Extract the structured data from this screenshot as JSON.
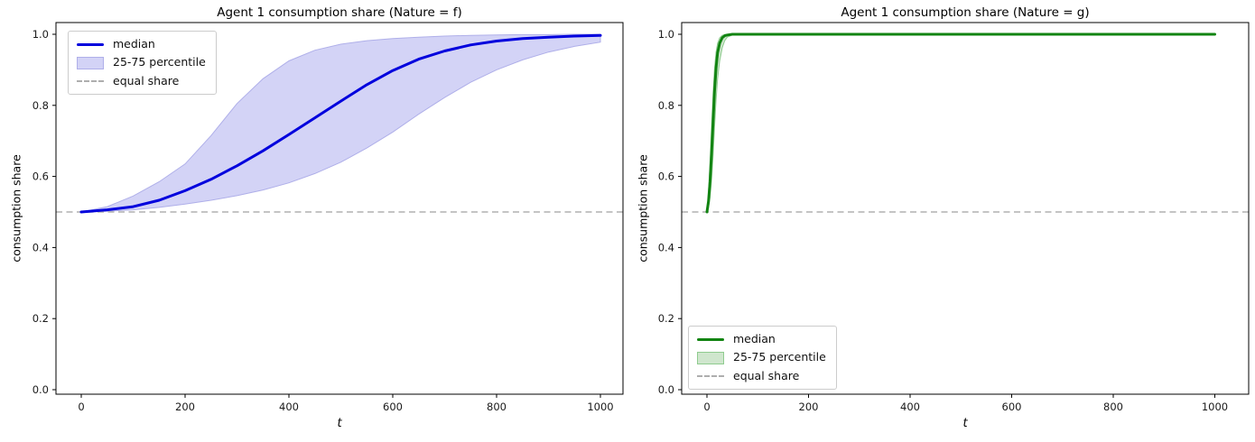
{
  "figure_background": "#ffffff",
  "chart_data": [
    {
      "type": "line",
      "title": "Agent 1 consumption share (Nature = f)",
      "xlabel": "t",
      "ylabel": "consumption share",
      "xlim": [
        -50,
        1050
      ],
      "ylim": [
        -0.03,
        1.04
      ],
      "grid": false,
      "xticks": [
        0,
        200,
        400,
        600,
        800,
        1000
      ],
      "xtick_labels": [
        "0",
        "200",
        "400",
        "600",
        "800",
        "1000"
      ],
      "yticks": [
        0.0,
        0.2,
        0.4,
        0.6,
        0.8,
        1.0
      ],
      "ytick_labels": [
        "0.0",
        "0.2",
        "0.4",
        "0.6",
        "0.8",
        "1.0"
      ],
      "legend": {
        "position": "upper left",
        "items": [
          "median",
          "25-75 percentile",
          "equal share"
        ]
      },
      "equal_share": 0.5,
      "colors": {
        "median": "#0000dd",
        "band_fill": "#d3d3f6",
        "band_edge": "#afafe9",
        "equal_share": "#b0b0b0"
      },
      "x": [
        0,
        50,
        100,
        150,
        200,
        250,
        300,
        350,
        400,
        450,
        500,
        550,
        600,
        650,
        700,
        750,
        800,
        850,
        900,
        950,
        1000
      ],
      "series": [
        {
          "name": "median",
          "values": [
            0.5,
            0.506,
            0.515,
            0.533,
            0.56,
            0.592,
            0.63,
            0.672,
            0.718,
            0.765,
            0.812,
            0.858,
            0.898,
            0.93,
            0.953,
            0.97,
            0.981,
            0.988,
            0.992,
            0.995,
            0.997
          ]
        },
        {
          "name": "p75",
          "values": [
            0.5,
            0.515,
            0.545,
            0.585,
            0.635,
            0.715,
            0.805,
            0.875,
            0.925,
            0.955,
            0.972,
            0.982,
            0.988,
            0.992,
            0.995,
            0.997,
            0.998,
            0.999,
            0.999,
            1.0,
            1.0
          ]
        },
        {
          "name": "p25",
          "values": [
            0.5,
            0.502,
            0.506,
            0.513,
            0.522,
            0.533,
            0.546,
            0.562,
            0.582,
            0.608,
            0.64,
            0.68,
            0.725,
            0.775,
            0.822,
            0.865,
            0.9,
            0.928,
            0.95,
            0.966,
            0.978
          ]
        }
      ]
    },
    {
      "type": "line",
      "title": "Agent 1 consumption share (Nature = g)",
      "xlabel": "t",
      "ylabel": "consumption share",
      "xlim": [
        -50,
        1050
      ],
      "ylim": [
        -0.03,
        1.04
      ],
      "grid": false,
      "xticks": [
        0,
        200,
        400,
        600,
        800,
        1000
      ],
      "xtick_labels": [
        "0",
        "200",
        "400",
        "600",
        "800",
        "1000"
      ],
      "yticks": [
        0.0,
        0.2,
        0.4,
        0.6,
        0.8,
        1.0
      ],
      "ytick_labels": [
        "0.0",
        "0.2",
        "0.4",
        "0.6",
        "0.8",
        "1.0"
      ],
      "legend": {
        "position": "lower left",
        "items": [
          "median",
          "25-75 percentile",
          "equal share"
        ]
      },
      "equal_share": 0.5,
      "colors": {
        "median": "#128412",
        "band_fill": "#cfe6cd",
        "band_edge": "#8fcc8f",
        "equal_share": "#b0b0b0"
      },
      "x": [
        0,
        3,
        6,
        9,
        12,
        15,
        18,
        21,
        25,
        30,
        35,
        40,
        50,
        75,
        100,
        150,
        200,
        300,
        400,
        500,
        600,
        700,
        800,
        900,
        1000
      ],
      "series": [
        {
          "name": "median",
          "values": [
            0.5,
            0.53,
            0.585,
            0.665,
            0.755,
            0.84,
            0.905,
            0.948,
            0.975,
            0.99,
            0.996,
            0.998,
            1.0,
            1.0,
            1.0,
            1.0,
            1.0,
            1.0,
            1.0,
            1.0,
            1.0,
            1.0,
            1.0,
            1.0,
            1.0
          ]
        },
        {
          "name": "p75",
          "values": [
            0.5,
            0.555,
            0.64,
            0.74,
            0.835,
            0.905,
            0.95,
            0.975,
            0.99,
            0.997,
            0.999,
            1.0,
            1.0,
            1.0,
            1.0,
            1.0,
            1.0,
            1.0,
            1.0,
            1.0,
            1.0,
            1.0,
            1.0,
            1.0,
            1.0
          ]
        },
        {
          "name": "p25",
          "values": [
            0.5,
            0.512,
            0.54,
            0.59,
            0.66,
            0.74,
            0.815,
            0.875,
            0.925,
            0.962,
            0.982,
            0.992,
            0.998,
            1.0,
            1.0,
            1.0,
            1.0,
            1.0,
            1.0,
            1.0,
            1.0,
            1.0,
            1.0,
            1.0,
            1.0
          ]
        }
      ]
    }
  ]
}
